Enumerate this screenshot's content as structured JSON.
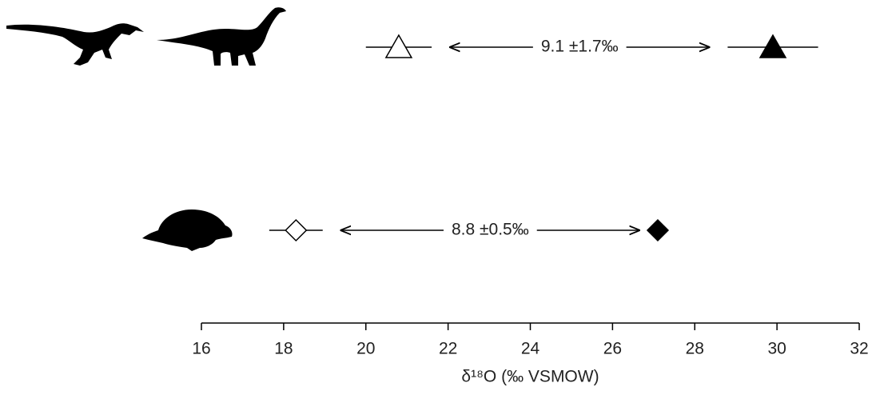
{
  "chart_data": {
    "type": "scatter",
    "xlabel": "δ¹⁸O (‰ VSMOW)",
    "xlim": [
      16,
      32
    ],
    "xticks": [
      16,
      18,
      20,
      22,
      24,
      26,
      28,
      30,
      32
    ],
    "series": [
      {
        "marker": "triangle",
        "color": "#000000",
        "x": [
          20.8,
          29.9
        ],
        "xerr": [
          0.8,
          1.1
        ],
        "filled": [
          false,
          true
        ]
      },
      {
        "marker": "diamond",
        "color": "#000000",
        "x": [
          18.3,
          27.1
        ],
        "xerr": [
          0.65,
          null
        ],
        "filled": [
          false,
          true
        ]
      }
    ],
    "annotations": [
      "9.1 ±1.7‰",
      "8.8 ±0.5‰"
    ]
  }
}
